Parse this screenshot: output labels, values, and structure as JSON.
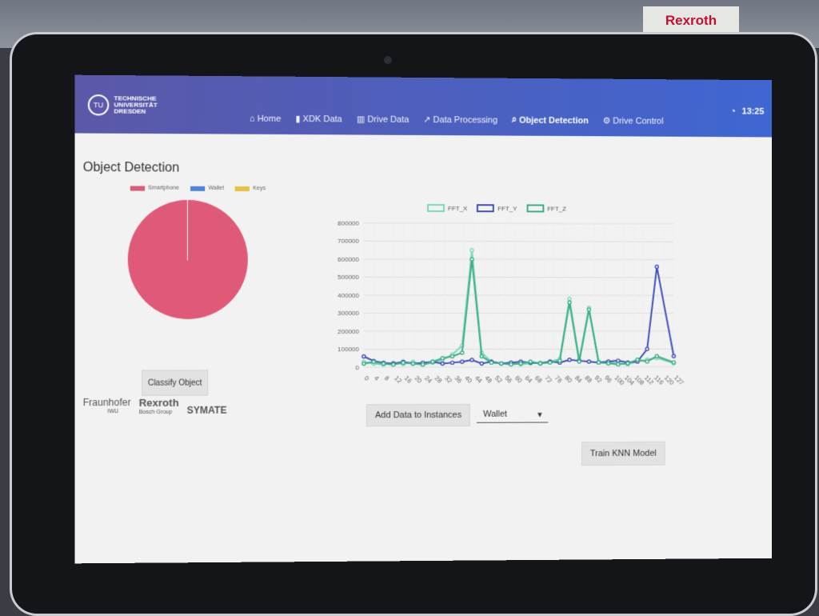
{
  "nav": {
    "brand": "TECHNISCHE\nUNIVERSITÄT\nDRESDEN",
    "items": [
      {
        "label": "Home",
        "icon": "home-icon",
        "active": false
      },
      {
        "label": "XDK Data",
        "icon": "device-icon",
        "active": false
      },
      {
        "label": "Drive Data",
        "icon": "bar-chart-icon",
        "active": false
      },
      {
        "label": "Data Processing",
        "icon": "line-chart-icon",
        "active": false
      },
      {
        "label": "Object Detection",
        "icon": "search-icon",
        "active": true
      },
      {
        "label": "Drive Control",
        "icon": "gear-icon",
        "active": false
      }
    ],
    "time": "13:25"
  },
  "page": {
    "title": "Object Detection"
  },
  "pie": {
    "labels": [
      "Smartphone",
      "Wallet",
      "Keys"
    ],
    "colors": [
      "#df5a78",
      "#4b86d8",
      "#e7c13f"
    ],
    "values": [
      99.7,
      0.3,
      0
    ]
  },
  "chart": {
    "legend": [
      "FFT_X",
      "FFT_Y",
      "FFT_Z"
    ],
    "colors": [
      "#7bd8b6",
      "#3f4fb3",
      "#3cad8a"
    ],
    "y_ticks": [
      "800000",
      "700000",
      "600000",
      "500000",
      "400000",
      "300000",
      "200000",
      "100000",
      "0"
    ],
    "x_ticks": [
      "0",
      "4",
      "8",
      "12",
      "16",
      "20",
      "24",
      "28",
      "32",
      "36",
      "40",
      "44",
      "48",
      "52",
      "56",
      "60",
      "64",
      "68",
      "72",
      "76",
      "80",
      "84",
      "88",
      "92",
      "96",
      "100",
      "104",
      "108",
      "112",
      "116",
      "120",
      "127"
    ]
  },
  "chart_data": {
    "type": "line",
    "x": [
      0,
      4,
      8,
      12,
      16,
      20,
      24,
      28,
      32,
      36,
      40,
      44,
      48,
      52,
      56,
      60,
      64,
      68,
      72,
      76,
      80,
      84,
      88,
      92,
      96,
      100,
      104,
      108,
      112,
      116,
      120,
      127
    ],
    "series": [
      {
        "name": "FFT_X",
        "values": [
          30000,
          20000,
          15000,
          25000,
          18000,
          30000,
          15000,
          25000,
          40000,
          70000,
          120000,
          650000,
          80000,
          30000,
          20000,
          25000,
          15000,
          20000,
          25000,
          30000,
          45000,
          380000,
          40000,
          330000,
          30000,
          25000,
          20000,
          15000,
          30000,
          40000,
          50000,
          20000
        ]
      },
      {
        "name": "FFT_Y",
        "values": [
          60000,
          35000,
          25000,
          20000,
          30000,
          20000,
          25000,
          30000,
          20000,
          25000,
          30000,
          40000,
          20000,
          30000,
          20000,
          25000,
          30000,
          25000,
          20000,
          30000,
          25000,
          40000,
          35000,
          30000,
          25000,
          30000,
          35000,
          25000,
          30000,
          100000,
          560000,
          60000
        ]
      },
      {
        "name": "FFT_Z",
        "values": [
          20000,
          30000,
          20000,
          15000,
          25000,
          20000,
          15000,
          30000,
          50000,
          60000,
          80000,
          600000,
          60000,
          25000,
          20000,
          15000,
          20000,
          30000,
          20000,
          25000,
          35000,
          360000,
          30000,
          320000,
          25000,
          20000,
          15000,
          20000,
          40000,
          30000,
          60000,
          25000
        ]
      }
    ],
    "ylim": [
      0,
      800000
    ]
  },
  "controls": {
    "classify": "Classify Object",
    "add": "Add Data to Instances",
    "select": "Wallet",
    "train": "Train KNN Model"
  },
  "partners": {
    "fraunhofer": "Fraunhofer",
    "fraunhofer_sub": "IWU",
    "rexroth": "Rexroth",
    "rexroth_sub": "Bosch Group",
    "symate": "SYMATE"
  },
  "background": {
    "brand": "Rexroth"
  }
}
